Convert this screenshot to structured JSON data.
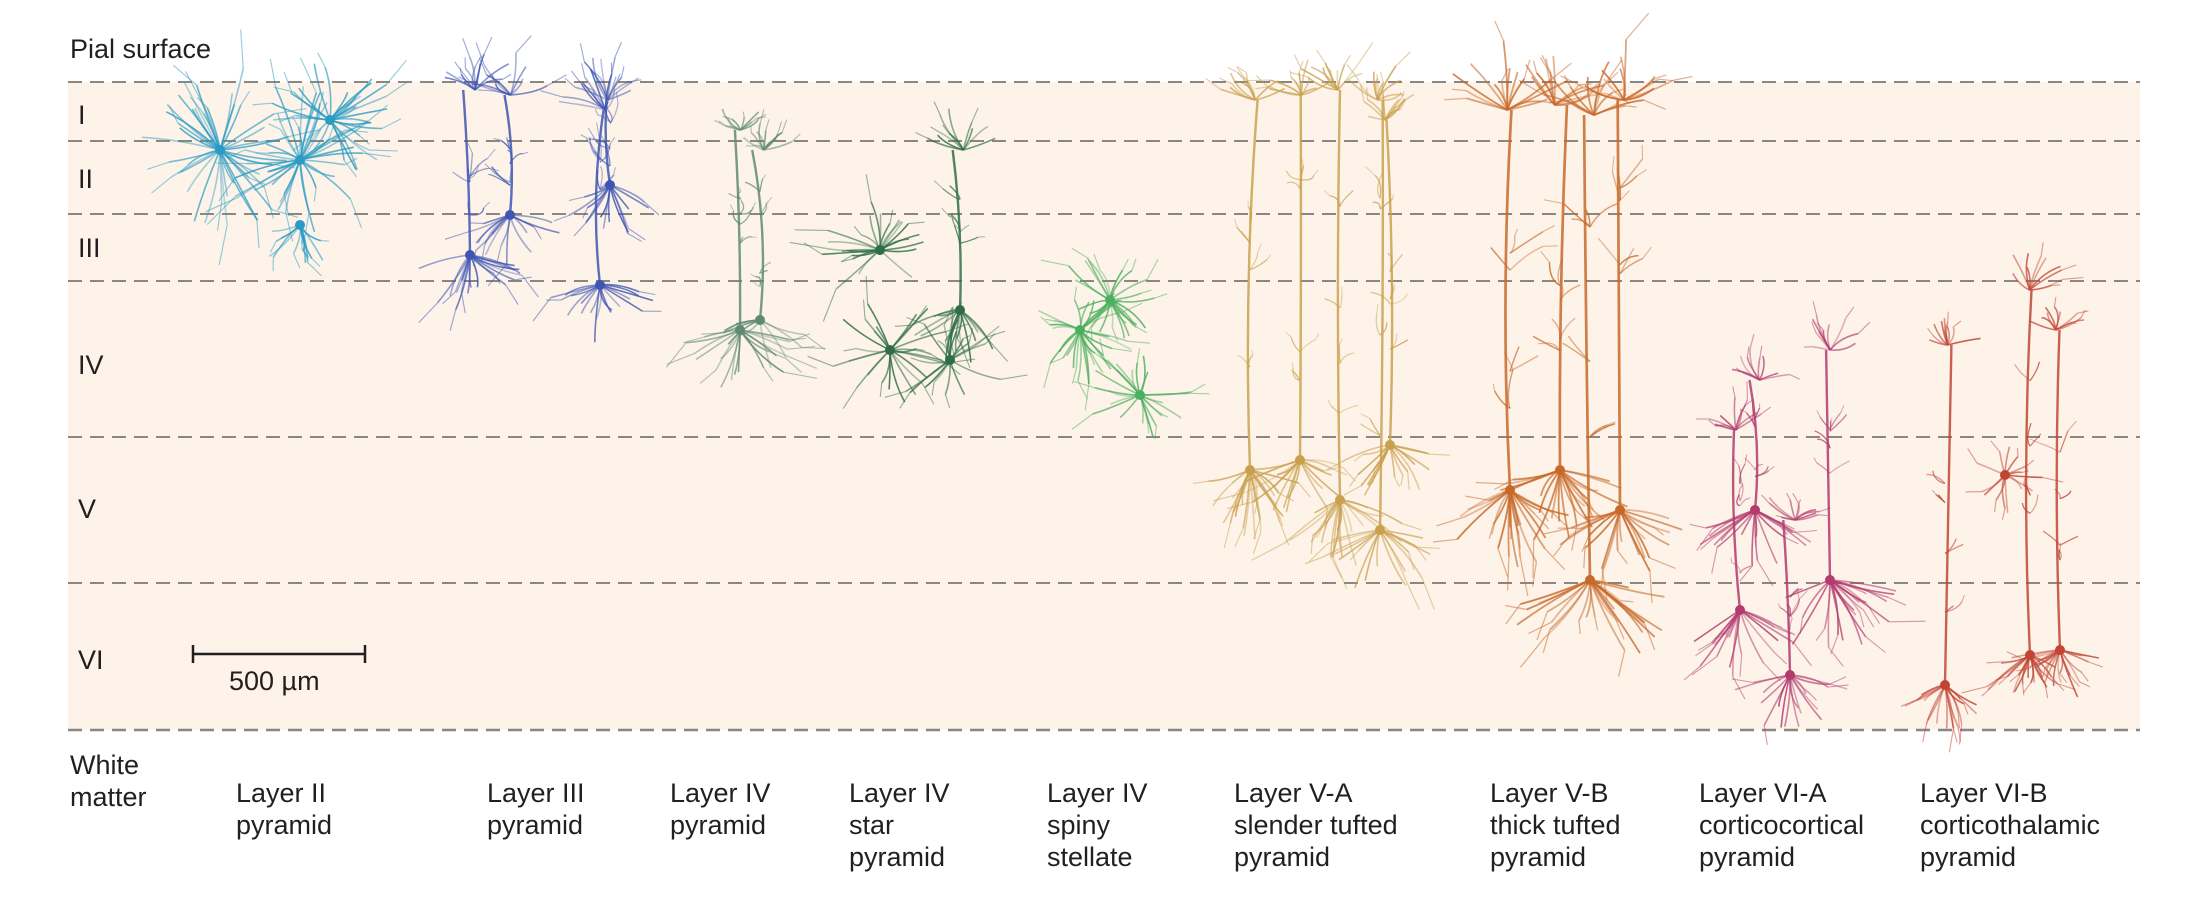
{
  "pial_label": "Pial surface",
  "white_matter_label": [
    "White",
    "matter"
  ],
  "layers": [
    "I",
    "II",
    "III",
    "IV",
    "V",
    "VI"
  ],
  "scale_bar": {
    "label": "500 µm"
  },
  "neurons": [
    {
      "label": [
        "Layer II",
        "pyramid"
      ],
      "color": "#2a9bc4",
      "soma_layer": "II"
    },
    {
      "label": [
        "Layer III",
        "pyramid"
      ],
      "color": "#3e55b3",
      "soma_layer": "III"
    },
    {
      "label": [
        "Layer IV",
        "pyramid"
      ],
      "color": "#5f8a72",
      "soma_layer": "IV"
    },
    {
      "label": [
        "Layer IV",
        "star",
        "pyramid"
      ],
      "color": "#2f6e45",
      "soma_layer": "IV"
    },
    {
      "label": [
        "Layer IV",
        "spiny",
        "stellate"
      ],
      "color": "#4caf5e",
      "soma_layer": "IV"
    },
    {
      "label": [
        "Layer V-A",
        "slender tufted",
        "pyramid"
      ],
      "color": "#c9a04e",
      "soma_layer": "V"
    },
    {
      "label": [
        "Layer V-B",
        "thick tufted",
        "pyramid"
      ],
      "color": "#c7692a",
      "soma_layer": "V"
    },
    {
      "label": [
        "Layer VI-A",
        "corticocortical",
        "pyramid"
      ],
      "color": "#b23a6e",
      "soma_layer": "VI"
    },
    {
      "label": [
        "Layer VI-B",
        "corticothalamic",
        "pyramid"
      ],
      "color": "#c04535",
      "soma_layer": "VI"
    }
  ],
  "colors": {
    "cortex_background": "#fdf3e8",
    "layer_boundary": "#8c8680",
    "text": "#231f20"
  }
}
